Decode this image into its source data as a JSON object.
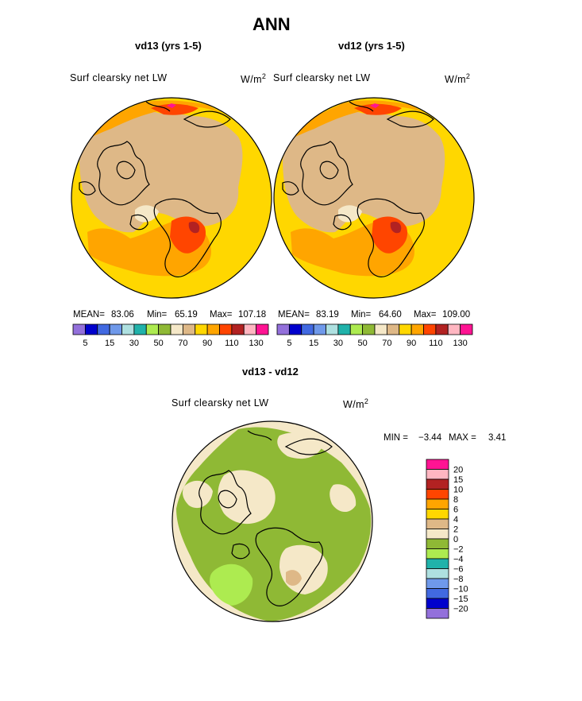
{
  "figure": {
    "title": "ANN",
    "panels": [
      {
        "id": "left",
        "title": "vd13 (yrs 1-5)",
        "field_label": "Surf clearsky net LW",
        "units_base": "W/m",
        "units_exp": "2",
        "stats": {
          "mean_label": "MEAN=",
          "mean": "83.06",
          "min_label": "Min=",
          "min": "65.19",
          "max_label": "Max=",
          "max": "107.18"
        }
      },
      {
        "id": "right",
        "title": "vd12 (yrs 1-5)",
        "field_label": "Surf clearsky net LW",
        "units_base": "W/m",
        "units_exp": "2",
        "stats": {
          "mean_label": "MEAN=",
          "mean": "83.19",
          "min_label": "Min=",
          "min": "64.60",
          "max_label": "Max=",
          "max": "109.00"
        }
      }
    ],
    "diff_panel": {
      "title": "vd13 - vd12",
      "field_label": "Surf clearsky net LW",
      "units_base": "W/m",
      "units_exp": "2",
      "min_label": "MIN =",
      "min": "−3.44",
      "max_label": "MAX =",
      "max": "3.41"
    }
  },
  "chart_data": [
    {
      "type": "heatmap",
      "projection": "north-polar-stereographic",
      "title": "vd13 (yrs 1-5)",
      "variable": "Surf clearsky net LW",
      "units": "W/m2",
      "mean": 83.06,
      "min": 65.19,
      "max": 107.18,
      "colorbar": {
        "orientation": "horizontal",
        "tick_labels": [
          "5",
          "15",
          "30",
          "50",
          "70",
          "90",
          "110",
          "130"
        ],
        "colors": [
          "#9370db",
          "#0000cd",
          "#4169e1",
          "#6f99ea",
          "#aee0e0",
          "#20b2aa",
          "#adeb50",
          "#8fb935",
          "#f5e8c8",
          "#deb887",
          "#ffd700",
          "#ffa500",
          "#ff4500",
          "#b22222",
          "#ffb6c1",
          "#ff1493"
        ]
      }
    },
    {
      "type": "heatmap",
      "projection": "north-polar-stereographic",
      "title": "vd12 (yrs 1-5)",
      "variable": "Surf clearsky net LW",
      "units": "W/m2",
      "mean": 83.19,
      "min": 64.6,
      "max": 109.0,
      "colorbar": {
        "orientation": "horizontal",
        "tick_labels": [
          "5",
          "15",
          "30",
          "50",
          "70",
          "90",
          "110",
          "130"
        ],
        "colors": [
          "#9370db",
          "#0000cd",
          "#4169e1",
          "#6f99ea",
          "#aee0e0",
          "#20b2aa",
          "#adeb50",
          "#8fb935",
          "#f5e8c8",
          "#deb887",
          "#ffd700",
          "#ffa500",
          "#ff4500",
          "#b22222",
          "#ffb6c1",
          "#ff1493"
        ]
      }
    },
    {
      "type": "heatmap",
      "projection": "north-polar-stereographic",
      "title": "vd13 - vd12",
      "variable": "Surf clearsky net LW",
      "units": "W/m2",
      "min": -3.44,
      "max": 3.41,
      "colorbar": {
        "orientation": "vertical",
        "tick_labels": [
          "20",
          "15",
          "10",
          "8",
          "6",
          "4",
          "2",
          "0",
          "−2",
          "−4",
          "−6",
          "−8",
          "−10",
          "−15",
          "−20"
        ],
        "colors": [
          "#ff1493",
          "#ffb6c1",
          "#b22222",
          "#ff4500",
          "#ffa500",
          "#ffd700",
          "#deb887",
          "#f5e8c8",
          "#8fb935",
          "#adeb50",
          "#20b2aa",
          "#aee0e0",
          "#6f99ea",
          "#4169e1",
          "#0000cd",
          "#9370db"
        ]
      }
    }
  ]
}
